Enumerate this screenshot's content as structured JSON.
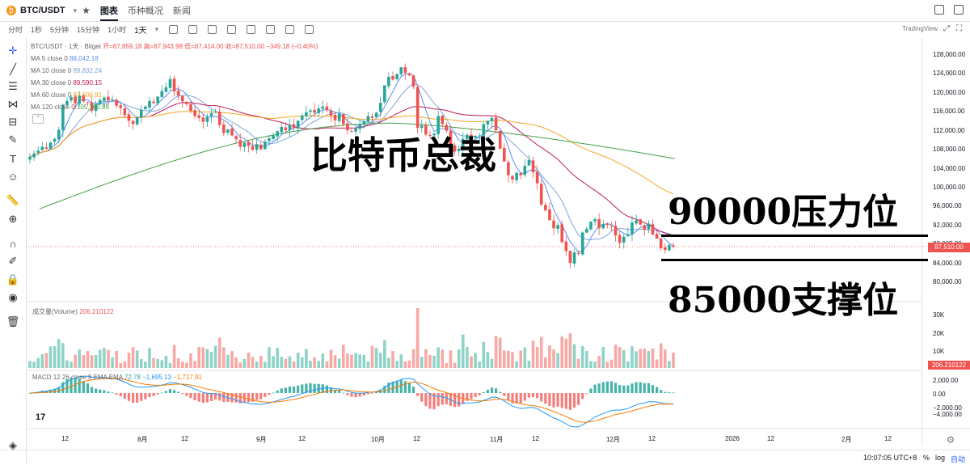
{
  "symbol": {
    "name": "BTC/USDT",
    "tabs": [
      "图表",
      "币种概况",
      "新闻"
    ]
  },
  "timeframes": [
    "分时",
    "1秒",
    "5分钟",
    "15分钟",
    "1小时",
    "1天"
  ],
  "tradingview_label": "TradingView",
  "legend": {
    "pair_line": "BTC/USDT · 1天 · Bitget",
    "open": "开=87,859.18",
    "high": "高=87,943.98",
    "low": "低=87,414.00",
    "close": "收=87,510.00",
    "change": "−349.18 (−0.40%)",
    "ma": [
      {
        "label": "MA 5 close 0",
        "value": "88,042.18",
        "color": "#5b8ef0"
      },
      {
        "label": "MA 10 close 0",
        "value": "89,832.24",
        "color": "#7fa6d9"
      },
      {
        "label": "MA 30 close 0",
        "value": "89,590.15",
        "color": "#c2185b"
      },
      {
        "label": "MA 60 close 0",
        "value": "87,606.91",
        "color": "#f5a623"
      },
      {
        "label": "MA 120 close 0",
        "value": "105,765.85",
        "color": "#43a047"
      }
    ]
  },
  "price_axis": {
    "labels": [
      "128,000.00",
      "124,000.00",
      "120,000.00",
      "116,000.00",
      "112,000.00",
      "108,000.00",
      "104,000.00",
      "100,000.00",
      "96,000.00",
      "92,000.00",
      "88,000.00",
      "84,000.00",
      "80,000.00"
    ],
    "current": "87,510.00"
  },
  "volume": {
    "label": "成交量(Volume)",
    "value": "206.210122",
    "axis": [
      "30K",
      "20K",
      "10K"
    ],
    "current": "206.210122"
  },
  "macd": {
    "label": "MACD 12 26 close 9 EMA EMA",
    "v1": "72.78",
    "v2": "−1,695.13",
    "v3": "−1,717.91",
    "axis": [
      "2,000.00",
      "0.00",
      "−2,000.00",
      "−4,000.00"
    ]
  },
  "x_axis": [
    "12",
    "8月",
    "12",
    "9月",
    "12",
    "10月",
    "12",
    "11月",
    "12",
    "12月",
    "12",
    "2026",
    "12",
    "2月",
    "12"
  ],
  "bottom": {
    "clock": "10:07:05 UTC+8",
    "pct": "%",
    "log": "log",
    "auto": "自动"
  },
  "overlay": {
    "title": "比特币总裁",
    "resistance": "90000压力位",
    "support": "85000支撑位"
  },
  "colors": {
    "up": "#26a69a",
    "down": "#ef5350",
    "up_light": "#8fd3c8",
    "down_light": "#f7a9a6"
  },
  "chart_data": {
    "type": "candlestick",
    "title": "BTC/USDT · 1天 · Bitget",
    "closes": [
      106500,
      107200,
      107800,
      108600,
      108200,
      109500,
      110300,
      112200,
      117500,
      118300,
      119100,
      117800,
      119400,
      118200,
      117900,
      116200,
      117600,
      118500,
      119000,
      118400,
      118600,
      117300,
      116800,
      115300,
      114100,
      113400,
      114800,
      116400,
      117100,
      118300,
      117800,
      119200,
      120400,
      121200,
      122900,
      120300,
      119400,
      118200,
      117600,
      116200,
      115100,
      114700,
      113900,
      114900,
      115700,
      116000,
      113200,
      111500,
      112300,
      111000,
      110200,
      108600,
      109500,
      108800,
      108000,
      109200,
      108100,
      109700,
      110400,
      111000,
      111900,
      112800,
      112100,
      113200,
      112600,
      114100,
      115200,
      115900,
      116300,
      115800,
      116700,
      117100,
      116400,
      115200,
      114200,
      115600,
      113400,
      112100,
      111900,
      112500,
      113400,
      114100,
      115100,
      114700,
      115800,
      117900,
      121600,
      123400,
      122800,
      124000,
      125400,
      124200,
      123700,
      121300,
      112600,
      113100,
      111200,
      110900,
      111400,
      115100,
      113400,
      112000,
      108900,
      107600,
      108200,
      110300,
      111100,
      110400,
      110900,
      111000,
      113400,
      114100,
      114700,
      112100,
      108200,
      105500,
      102600,
      101700,
      103100,
      102600,
      104600,
      105800,
      103200,
      100900,
      96400,
      95200,
      93100,
      91400,
      92100,
      88500,
      86600,
      84100,
      86300,
      86000,
      90500,
      91300,
      92800,
      93300,
      91400,
      92300,
      92100,
      91800,
      89900,
      88300,
      89600,
      90100,
      92600,
      93100,
      92200,
      91100,
      92400,
      90100,
      89200,
      87200,
      86800,
      87859,
      87510
    ],
    "resistance": 90000,
    "support": 85000,
    "price_range": [
      78000,
      130000
    ]
  }
}
